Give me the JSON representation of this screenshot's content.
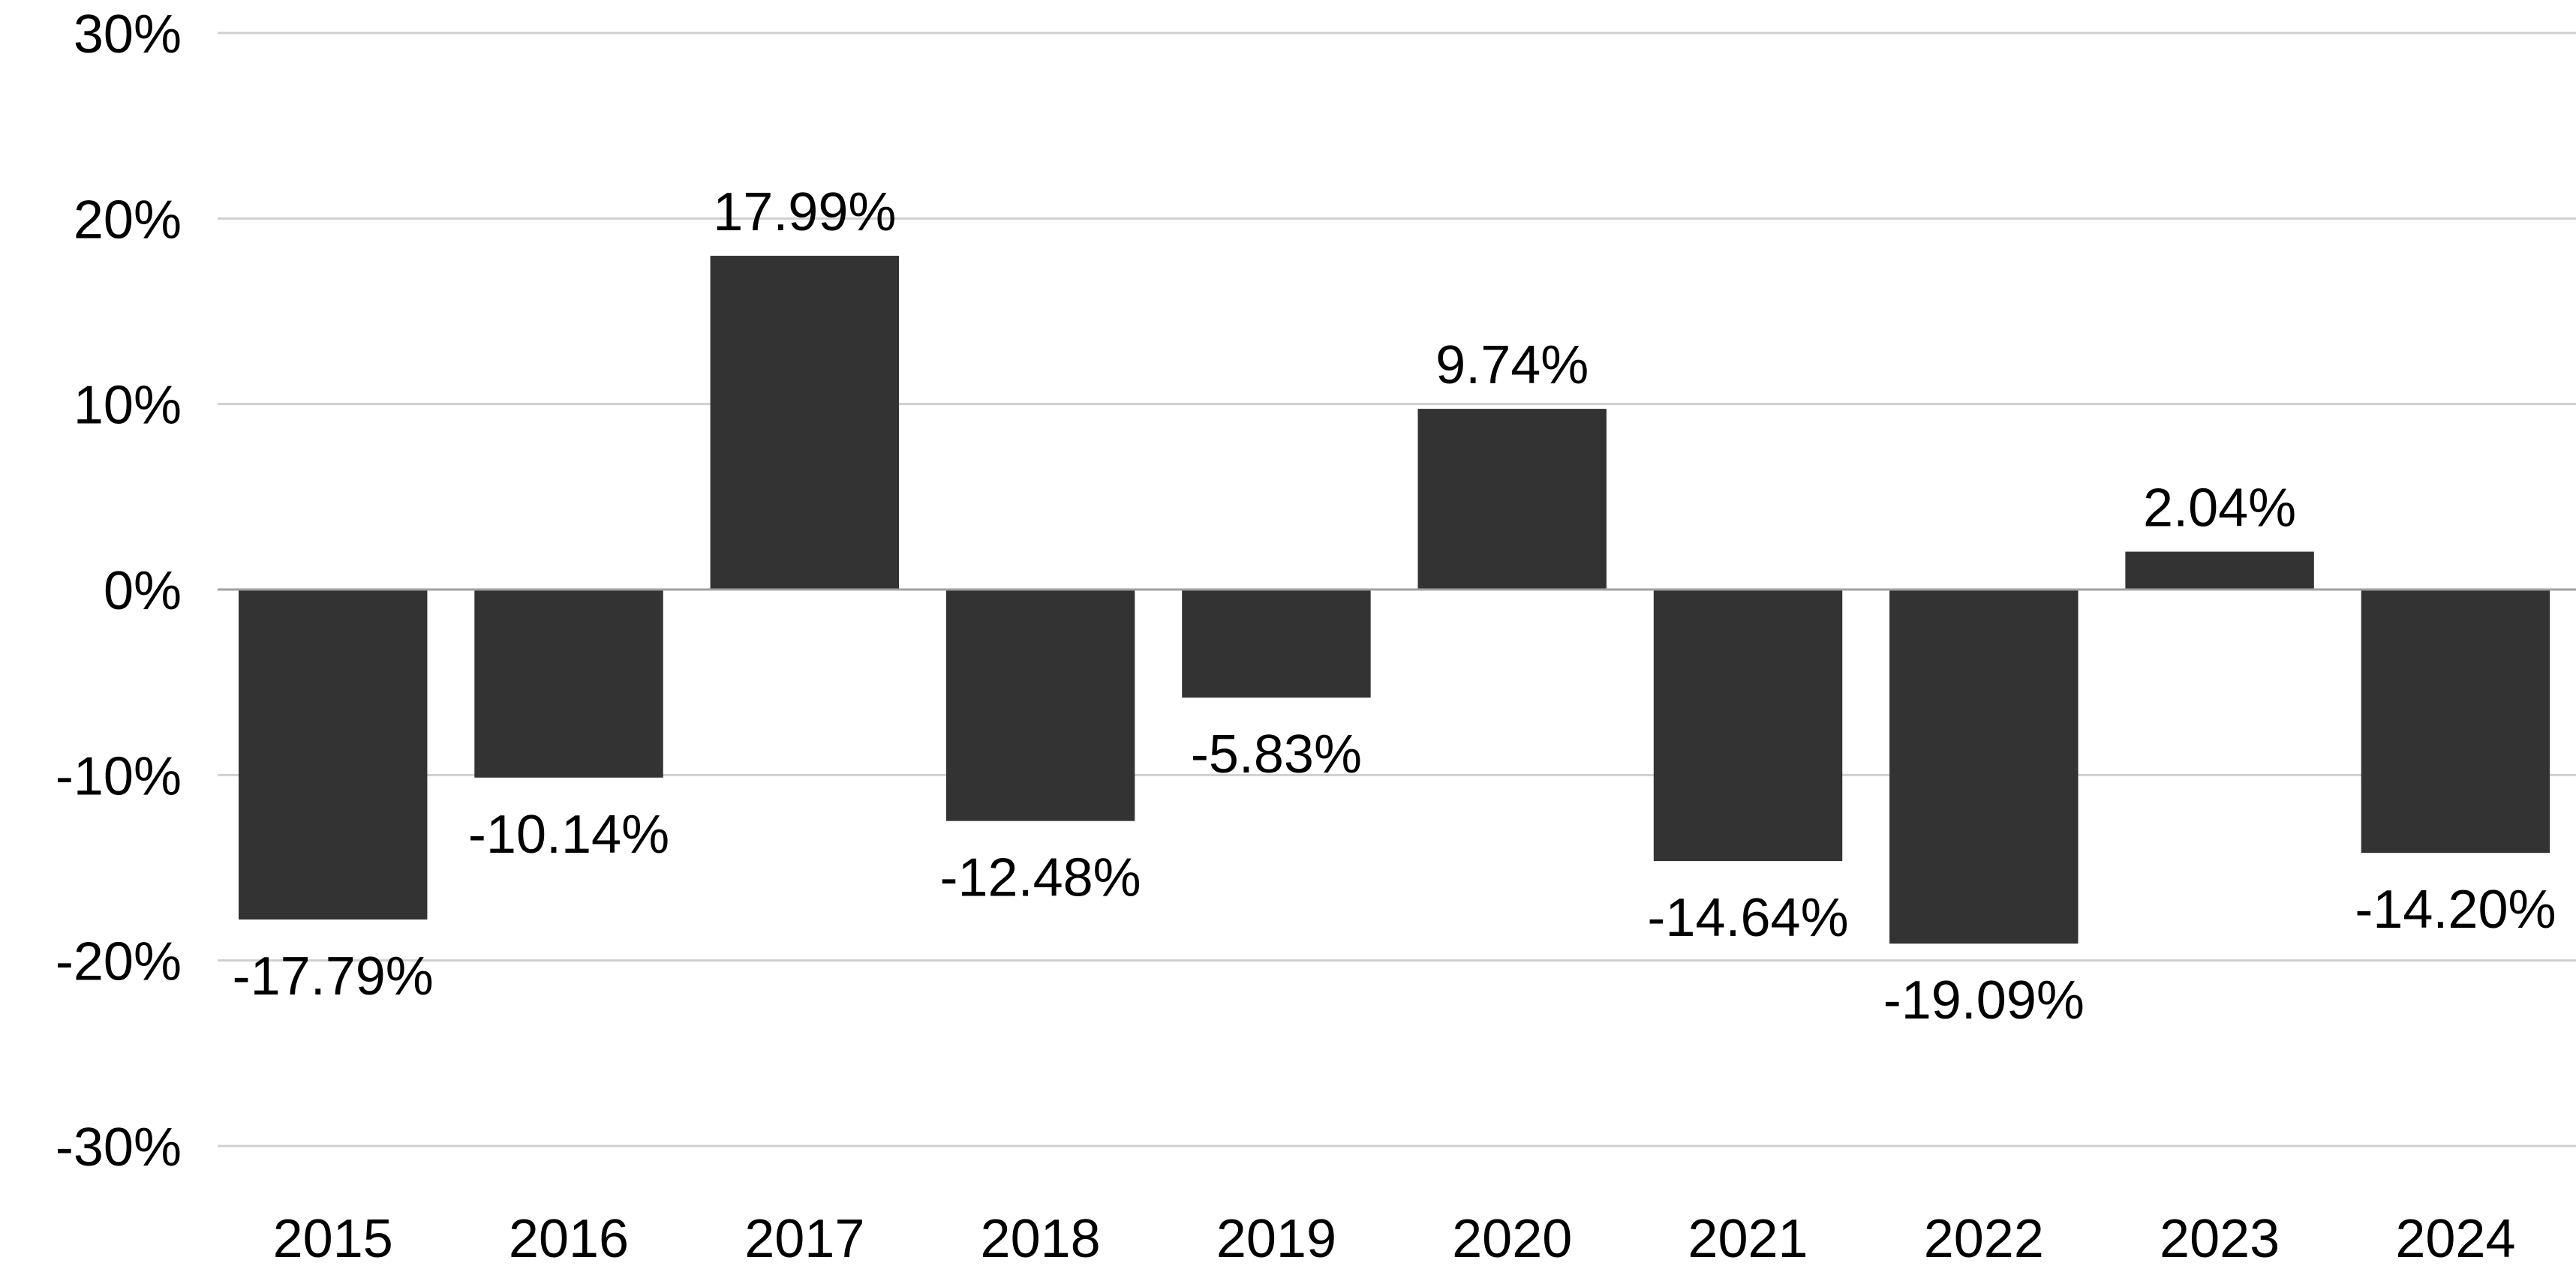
{
  "chart_data": {
    "type": "bar",
    "title": "",
    "xlabel": "",
    "ylabel": "",
    "categories": [
      "2015",
      "2016",
      "2017",
      "2018",
      "2019",
      "2020",
      "2021",
      "2022",
      "2023",
      "2024"
    ],
    "values": [
      -17.79,
      -10.14,
      17.99,
      -12.48,
      -5.83,
      9.74,
      -14.64,
      -19.09,
      2.04,
      -14.2
    ],
    "data_labels": [
      "-17.79%",
      "-10.14%",
      "17.99%",
      "-12.48%",
      "-5.83%",
      "9.74%",
      "-14.64%",
      "-19.09%",
      "2.04%",
      "-14.20%"
    ],
    "ylim": [
      -30,
      30
    ],
    "yticks": [
      30,
      20,
      10,
      0,
      -10,
      -20,
      -30
    ],
    "ytick_labels": [
      "30%",
      "20%",
      "10%",
      "0%",
      "-10%",
      "-20%",
      "-30%"
    ],
    "grid": true,
    "legend": "none",
    "bar_color": "#333333"
  }
}
